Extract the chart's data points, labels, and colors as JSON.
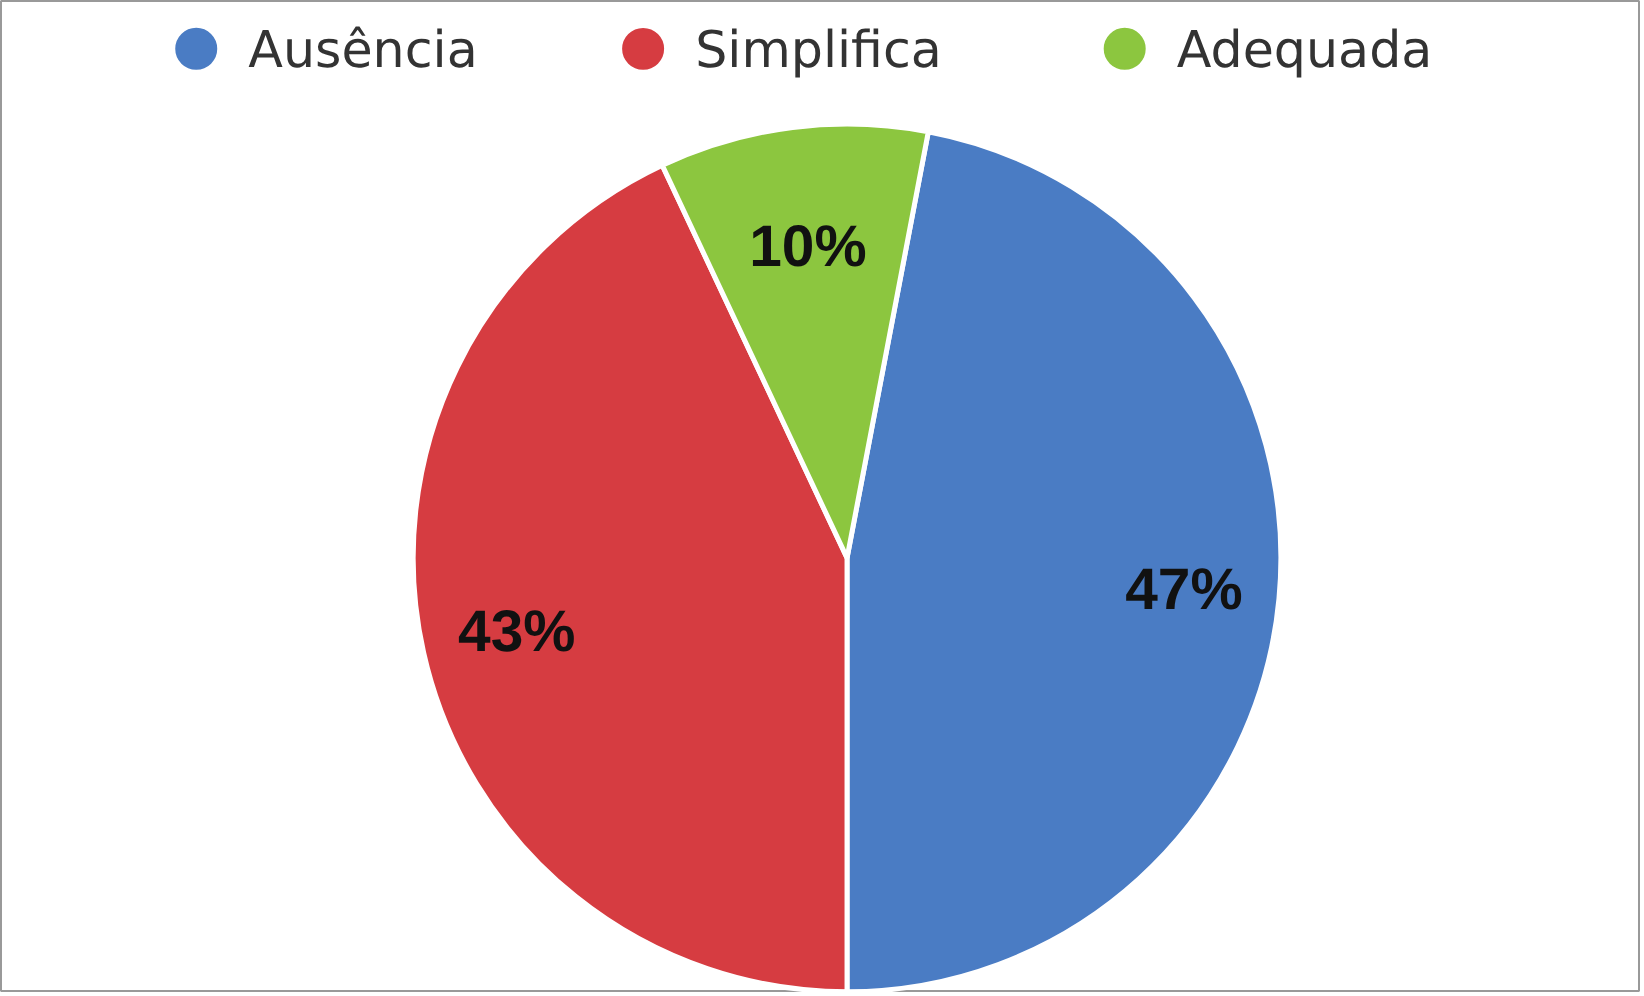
{
  "chart_data": {
    "type": "pie",
    "categories": [
      "Ausência",
      "Simplifica",
      "Adequada"
    ],
    "values": [
      47,
      43,
      10
    ],
    "colors": [
      "#4a7cc4",
      "#d63c41",
      "#8cc63f"
    ],
    "value_labels": [
      "47%",
      "43%",
      "10%"
    ],
    "legend": "top"
  }
}
